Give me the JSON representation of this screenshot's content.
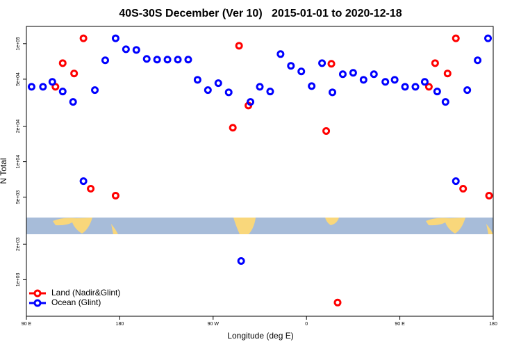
{
  "chart_data": {
    "type": "scatter",
    "title": "40S-30S December (Ver 10)   2015-01-01 to 2020-12-18",
    "x_label": "Longitude (deg E)",
    "y_label": "N Total",
    "xlim": [
      90,
      540
    ],
    "ylim": [
      490,
      140000
    ],
    "y_scale": "log",
    "xticks": [
      {
        "value": 90,
        "label": "90 E"
      },
      {
        "value": 180,
        "label": "180"
      },
      {
        "value": 270,
        "label": "90 W"
      },
      {
        "value": 360,
        "label": "0"
      },
      {
        "value": 450,
        "label": "90 E"
      },
      {
        "value": 540,
        "label": "180"
      }
    ],
    "yticks": [
      {
        "value": 1000,
        "label": "1e+03"
      },
      {
        "value": 2000,
        "label": "2e+03"
      },
      {
        "value": 5000,
        "label": "5e+03"
      },
      {
        "value": 10000,
        "label": "1e+04"
      },
      {
        "value": 20000,
        "label": "2e+04"
      },
      {
        "value": 50000,
        "label": "5e+04"
      },
      {
        "value": 100000,
        "label": "1e+05"
      }
    ],
    "legend": "bottom-left",
    "series": [
      {
        "name": "Land (Nadir&Glint)",
        "color": "#ff0000",
        "x": [
          118,
          125,
          136,
          145,
          152,
          176,
          289,
          295,
          304,
          379,
          384,
          390,
          478,
          484,
          496,
          504,
          511,
          536
        ],
        "values": [
          43100,
          68400,
          55900,
          111000,
          5900,
          5150,
          19400,
          96000,
          29900,
          18200,
          67500,
          640,
          43100,
          68400,
          55900,
          111000,
          5900,
          5150
        ]
      },
      {
        "name": "Ocean (Glint)",
        "color": "#0000ff",
        "x": [
          95,
          106,
          115,
          125,
          135,
          145,
          156,
          166,
          176,
          186,
          196,
          206,
          216,
          226,
          236,
          246,
          255,
          265,
          275,
          285,
          297,
          306,
          315,
          325,
          335,
          345,
          355,
          365,
          375,
          385,
          395,
          405,
          415,
          425,
          436,
          445,
          455,
          465,
          474,
          486,
          494,
          504,
          515,
          525,
          535
        ],
        "values": [
          43100,
          43100,
          47500,
          39300,
          32100,
          6840,
          40400,
          72300,
          111000,
          89700,
          88500,
          74300,
          73300,
          73300,
          73300,
          73300,
          49400,
          40400,
          46300,
          38700,
          1440,
          32100,
          43100,
          39300,
          81600,
          64900,
          58200,
          43700,
          68400,
          38700,
          55100,
          56600,
          49400,
          55100,
          47500,
          49400,
          43100,
          43100,
          47500,
          39300,
          32100,
          6840,
          40400,
          72300,
          111000
        ]
      }
    ]
  }
}
